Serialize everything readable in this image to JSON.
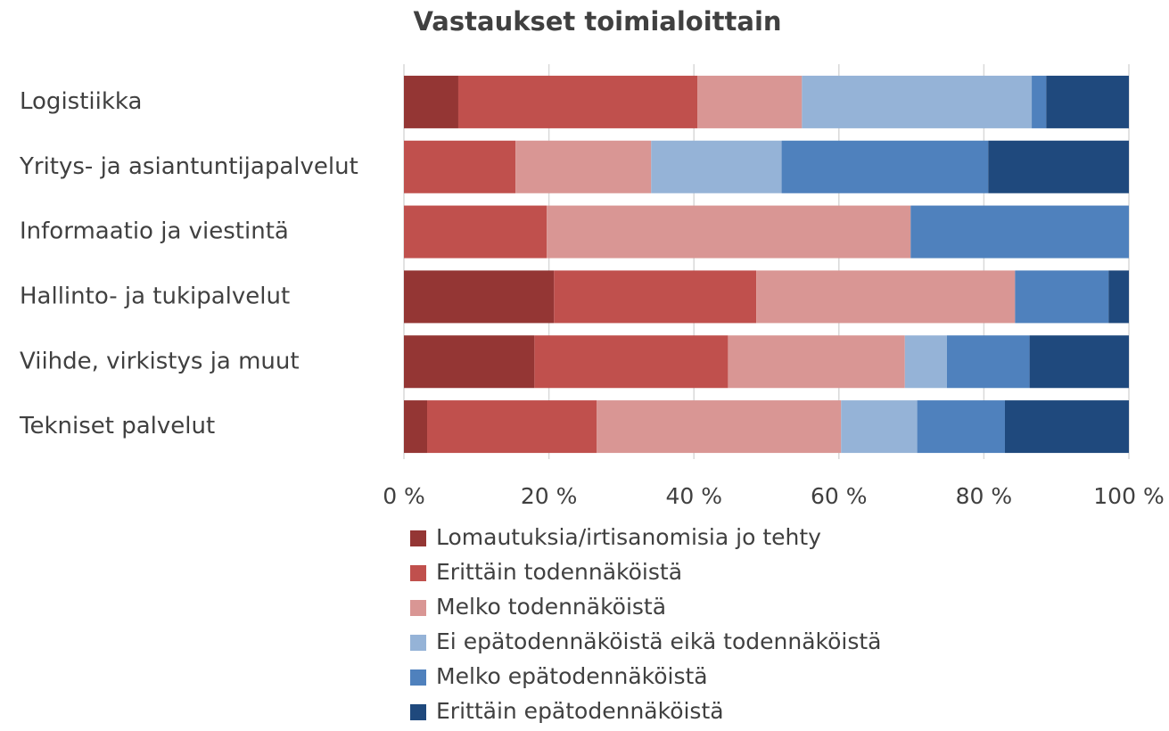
{
  "chart_data": {
    "type": "bar",
    "orientation": "horizontal",
    "stacked": true,
    "title": "Vastaukset toimialoittain",
    "categories": [
      "Logistiikka",
      "Yritys- ja asiantuntijapalvelut",
      "Informaatio ja viestintä",
      "Hallinto- ja tukipalvelut",
      "Viihde, virkistys ja muut",
      "Tekniset palvelut"
    ],
    "series": [
      {
        "name": "Lomautuksia/irtisanomisia jo tehty",
        "color": "#943634",
        "values": [
          7.5,
          0,
          0,
          20.7,
          18.0,
          3.2
        ]
      },
      {
        "name": "Erittäin todennäköistä",
        "color": "#c0504d",
        "values": [
          33.0,
          15.4,
          19.7,
          27.9,
          26.7,
          23.4
        ]
      },
      {
        "name": "Melko todennäköistä",
        "color": "#d99694",
        "values": [
          14.4,
          18.7,
          50.2,
          35.7,
          24.4,
          33.7
        ]
      },
      {
        "name": "Ei epätodennäköistä eikä todennäköistä",
        "color": "#95b3d7",
        "values": [
          31.7,
          18.0,
          0,
          0,
          5.8,
          10.5
        ]
      },
      {
        "name": "Melko epätodennäköistä",
        "color": "#4f81bd",
        "values": [
          2.0,
          28.5,
          30.1,
          12.9,
          11.4,
          12.1
        ]
      },
      {
        "name": "Erittäin epätodennäköistä",
        "color": "#1f497d",
        "values": [
          11.4,
          19.4,
          0,
          2.8,
          13.7,
          17.1
        ]
      }
    ],
    "xlim": [
      0,
      100
    ],
    "xticks": [
      {
        "value": 0,
        "label": "0 %"
      },
      {
        "value": 20,
        "label": "20 %"
      },
      {
        "value": 40,
        "label": "40 %"
      },
      {
        "value": 60,
        "label": "60 %"
      },
      {
        "value": 80,
        "label": "80 %"
      },
      {
        "value": 100,
        "label": "100 %"
      }
    ],
    "grid": true,
    "legend": "bottom"
  }
}
